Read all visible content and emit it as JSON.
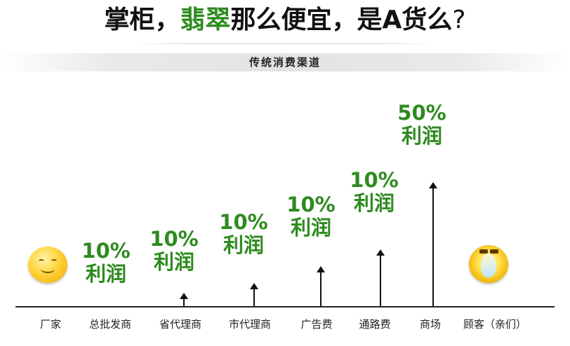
{
  "title": {
    "part1": "掌柜，",
    "part2": "翡翠",
    "part3": "那么便宜，是A货么",
    "question_mark": "?"
  },
  "subtitle": "传统消费渠道",
  "colors": {
    "profit_green": "#2e8b1f",
    "text_dark": "#111111",
    "band_grey": "#e3e3e3"
  },
  "icons": {
    "factory": "smiley-face-icon",
    "customer": "happy-chick-face-icon"
  },
  "chain": [
    {
      "label": "厂家"
    },
    {
      "label": "总批发商",
      "profit_percent": "10%",
      "profit_word": "利润"
    },
    {
      "label": "省代理商",
      "profit_percent": "10%",
      "profit_word": "利润"
    },
    {
      "label": "市代理商",
      "profit_percent": "10%",
      "profit_word": "利润"
    },
    {
      "label": "广告费",
      "profit_percent": "10%",
      "profit_word": "利润"
    },
    {
      "label": "通路费",
      "profit_percent": "10%",
      "profit_word": "利润"
    },
    {
      "label": "商场",
      "profit_percent": "50%",
      "profit_word": "利润"
    },
    {
      "label": "顾客（亲们）"
    }
  ]
}
